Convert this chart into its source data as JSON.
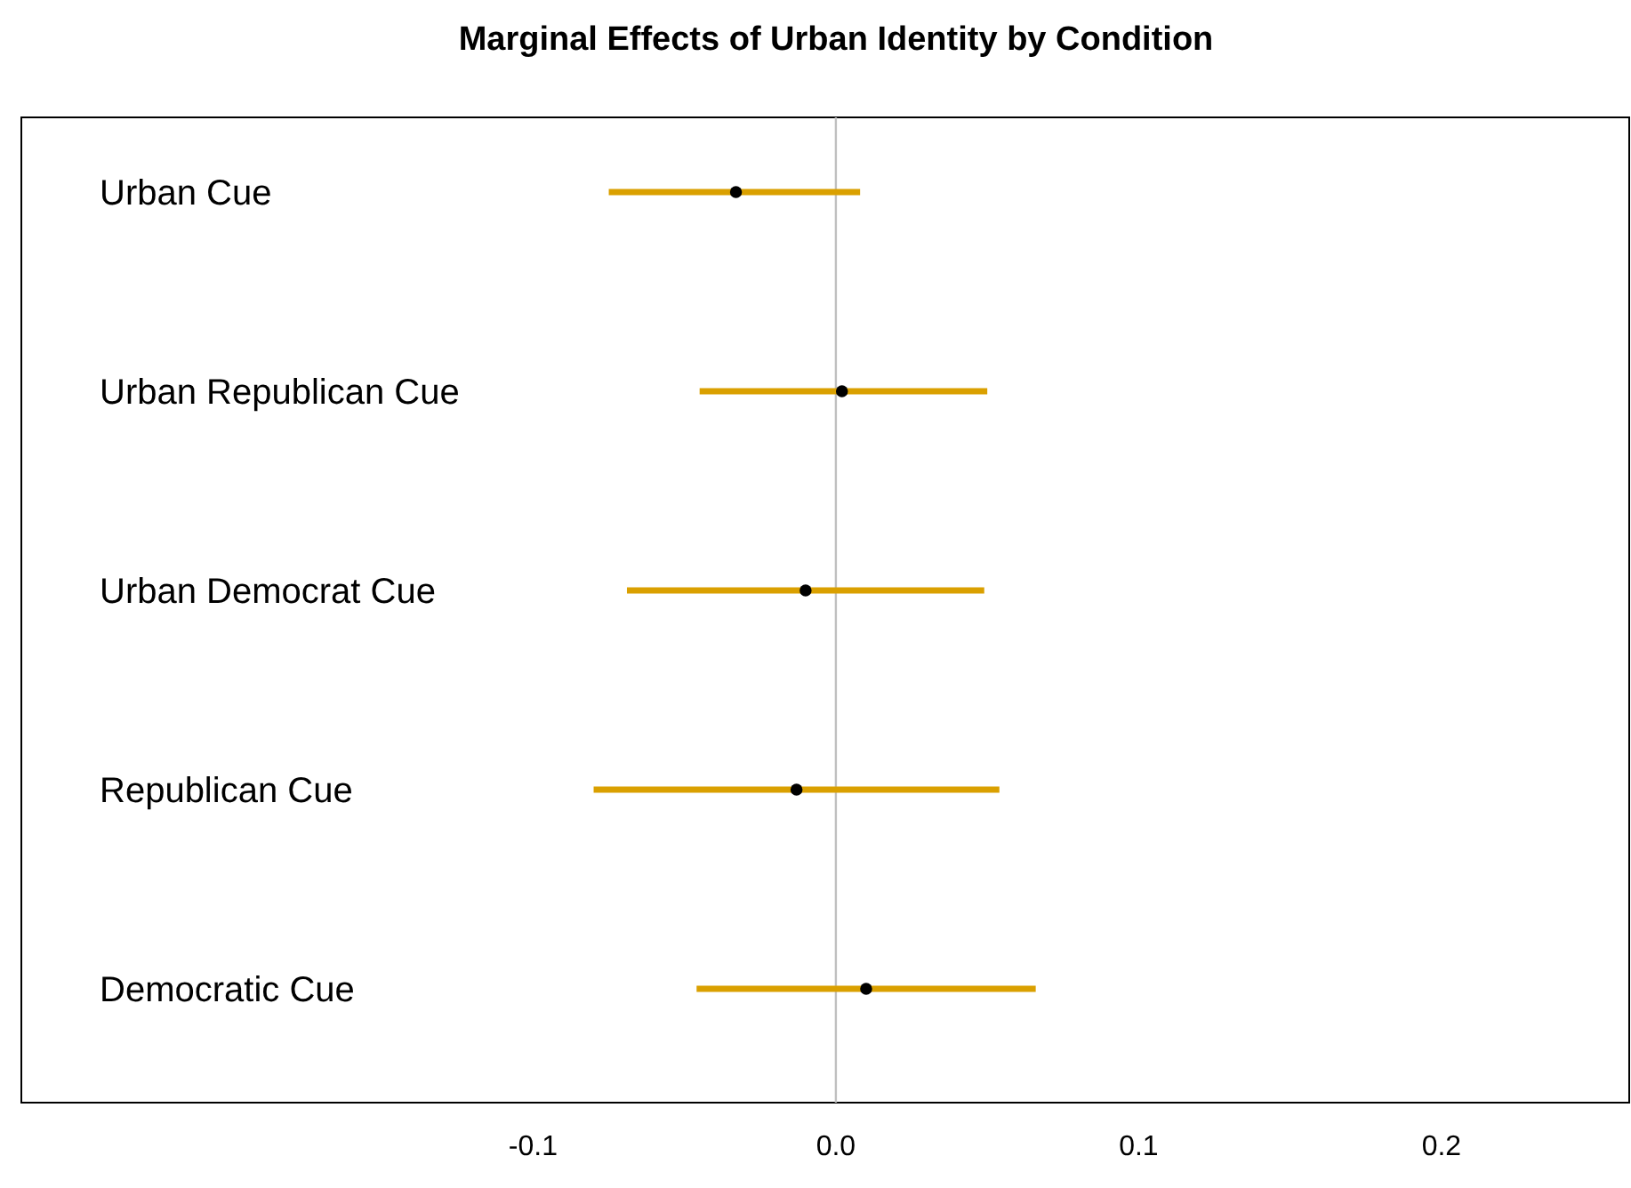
{
  "chart_data": {
    "type": "scatter",
    "orientation": "horizontal",
    "title": "Marginal Effects of Urban Identity by Condition",
    "categories": [
      "Urban Cue",
      "Urban Republican Cue",
      "Urban Democrat Cue",
      "Republican Cue",
      "Democratic Cue"
    ],
    "series": [
      {
        "color": "#000000",
        "values": [
          -0.033,
          0.002,
          -0.01,
          -0.013,
          0.01
        ],
        "errors": [
          [
            -0.075,
            0.008
          ],
          [
            -0.045,
            0.05
          ],
          [
            -0.069,
            0.049
          ],
          [
            -0.08,
            0.054
          ],
          [
            -0.046,
            0.066
          ]
        ]
      }
    ],
    "xlim": [
      -0.269,
      0.262
    ],
    "xticks": [
      {
        "value": -0.1,
        "label": "-0.1"
      },
      {
        "value": 0,
        "label": "0.0"
      },
      {
        "value": 0.1,
        "label": "0.1"
      },
      {
        "value": 0.2,
        "label": "0.2"
      }
    ],
    "marker": "circle",
    "grid": false,
    "ref_lines": [
      {
        "axis": "x",
        "value": 0,
        "color": "#c0c0c0"
      }
    ]
  }
}
